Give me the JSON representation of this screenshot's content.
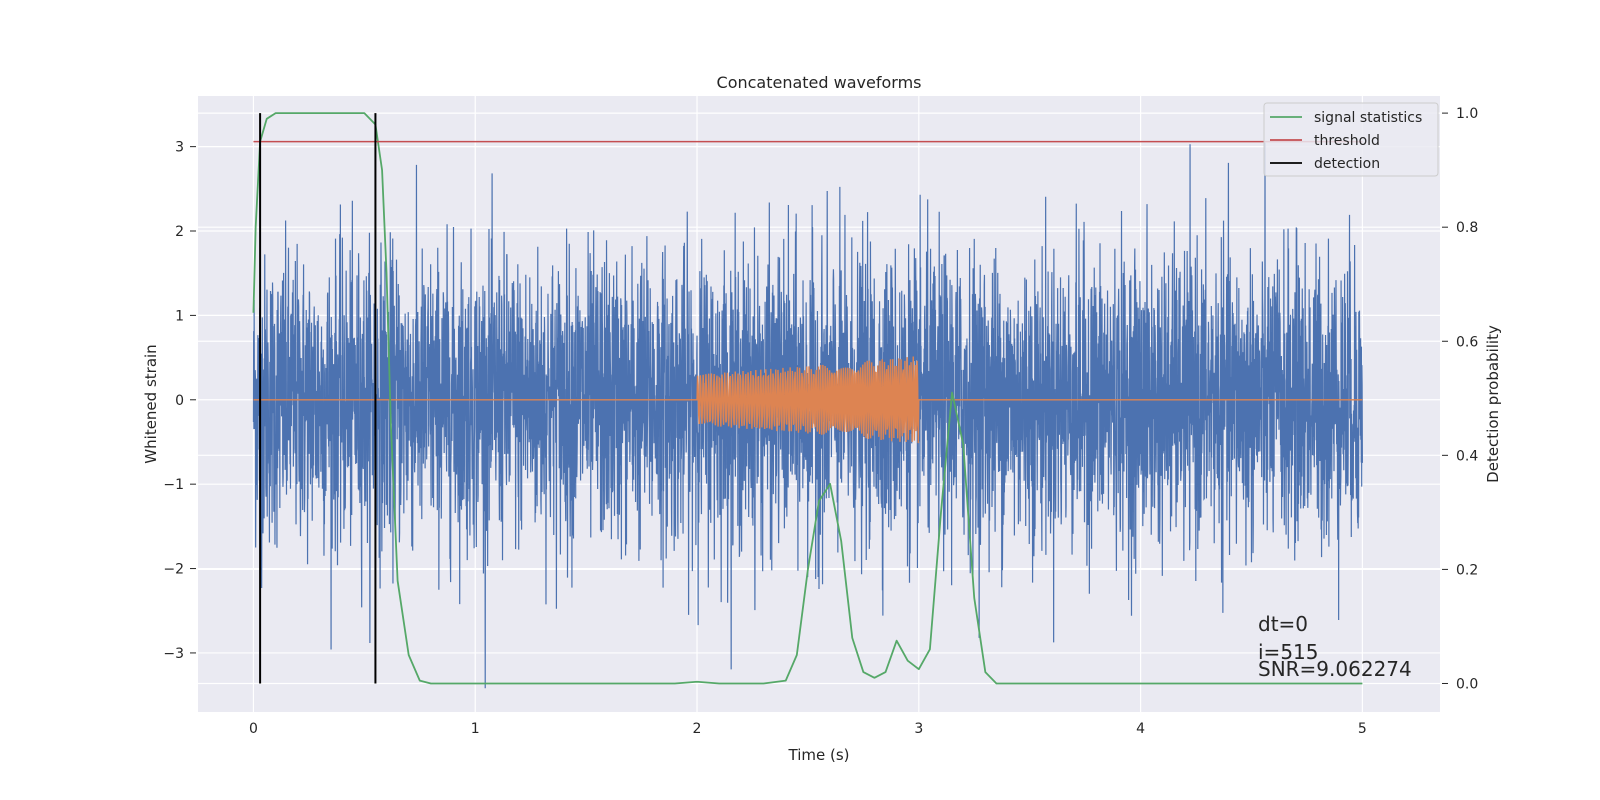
{
  "chart_data": {
    "type": "line",
    "title": "Concatenated waveforms",
    "xlabel": "Time (s)",
    "ylabel": "Whitened strain",
    "y2label": "Detection probability",
    "xlim": [
      -0.25,
      5.35
    ],
    "ylim": [
      -3.7,
      3.6
    ],
    "y2lim": [
      -0.05,
      1.03
    ],
    "xticks": [
      0,
      1,
      2,
      3,
      4,
      5
    ],
    "xtick_labels": [
      "0",
      "1",
      "2",
      "3",
      "4",
      "5"
    ],
    "yticks": [
      -3,
      -2,
      -1,
      0,
      1,
      2,
      3
    ],
    "ytick_labels": [
      "−3",
      "−2",
      "−1",
      "0",
      "1",
      "2",
      "3"
    ],
    "y2ticks": [
      0.0,
      0.2,
      0.4,
      0.6,
      0.8,
      1.0
    ],
    "y2tick_labels": [
      "0.0",
      "0.2",
      "0.4",
      "0.6",
      "0.8",
      "1.0"
    ],
    "grid": true,
    "legend_position": "top-right",
    "series": [
      {
        "name": "",
        "axis": "left",
        "color": "#4c72b0",
        "description": "whitened strain noise",
        "x_range": [
          0,
          5
        ],
        "std": 0.85,
        "max": 3.3,
        "min": -3.5
      },
      {
        "name": "",
        "axis": "left",
        "color": "#dd8452",
        "description": "injected waveform (zero outside 2-3 s)",
        "x": [
          0,
          2,
          2.5,
          3,
          5
        ],
        "amplitude": [
          0,
          0.3,
          0.4,
          0.52,
          0
        ]
      },
      {
        "name": "signal statistics",
        "axis": "right",
        "color": "#55a868",
        "x": [
          0.0,
          0.01,
          0.03,
          0.06,
          0.1,
          0.15,
          0.3,
          0.5,
          0.55,
          0.58,
          0.6,
          0.62,
          0.65,
          0.7,
          0.75,
          0.8,
          1.0,
          1.5,
          1.9,
          2.0,
          2.1,
          2.3,
          2.4,
          2.45,
          2.5,
          2.55,
          2.6,
          2.65,
          2.7,
          2.75,
          2.8,
          2.85,
          2.9,
          2.95,
          3.0,
          3.05,
          3.1,
          3.15,
          3.2,
          3.25,
          3.3,
          3.35,
          3.5,
          4.0,
          4.5,
          5.0
        ],
        "y": [
          0.65,
          0.8,
          0.95,
          0.99,
          1.0,
          1.0,
          1.0,
          1.0,
          0.98,
          0.9,
          0.72,
          0.45,
          0.18,
          0.05,
          0.005,
          0.0,
          0.0,
          0.0,
          0.0,
          0.003,
          0.0,
          0.0,
          0.005,
          0.05,
          0.2,
          0.32,
          0.35,
          0.25,
          0.08,
          0.02,
          0.01,
          0.02,
          0.075,
          0.04,
          0.025,
          0.06,
          0.3,
          0.51,
          0.42,
          0.15,
          0.02,
          0.0,
          0.0,
          0.0,
          0.0,
          0.0
        ]
      },
      {
        "name": "threshold",
        "axis": "right",
        "color": "#c44e52",
        "x": [
          0,
          5
        ],
        "y": [
          0.95,
          0.95
        ]
      },
      {
        "name": "detection",
        "axis": "right",
        "color": "#000000",
        "type": "vlines",
        "x": [
          0.03,
          0.55
        ],
        "y": [
          0.0,
          1.0
        ]
      }
    ],
    "annotations": [
      {
        "text": "dt=0",
        "x": 4.5,
        "y": 0.1
      },
      {
        "text": "i=515",
        "x": 4.5,
        "y": 0.05
      },
      {
        "text": "SNR=9.062274",
        "x": 4.5,
        "y": 0.02
      }
    ]
  }
}
